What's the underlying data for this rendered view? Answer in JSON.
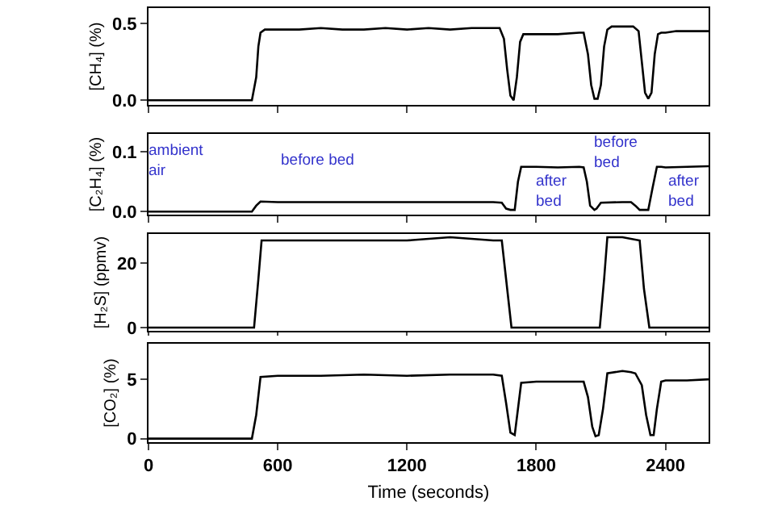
{
  "chart_data": [
    {
      "type": "line",
      "color": "#000000",
      "ylabel": "[CH₄] (%)",
      "xlim": [
        0,
        2600
      ],
      "xticks": [
        0,
        600,
        1200,
        1800,
        2400
      ],
      "ylim": [
        -0.03,
        0.6
      ],
      "yticks": [
        {
          "value": 0,
          "label": "0.0"
        },
        {
          "value": 0.5,
          "label": "0.5"
        }
      ],
      "tick_labels": "y",
      "x": [
        0,
        100,
        200,
        300,
        400,
        480,
        500,
        510,
        520,
        540,
        600,
        700,
        800,
        900,
        1000,
        1100,
        1200,
        1300,
        1400,
        1500,
        1600,
        1630,
        1650,
        1665,
        1680,
        1695,
        1710,
        1725,
        1740,
        1800,
        1900,
        2000,
        2020,
        2040,
        2055,
        2070,
        2085,
        2100,
        2115,
        2130,
        2150,
        2200,
        2250,
        2275,
        2290,
        2305,
        2320,
        2335,
        2350,
        2365,
        2380,
        2400,
        2450,
        2500,
        2550,
        2600
      ],
      "values": [
        0,
        0,
        0,
        0,
        0,
        0,
        0.15,
        0.35,
        0.44,
        0.46,
        0.46,
        0.46,
        0.47,
        0.46,
        0.46,
        0.47,
        0.46,
        0.47,
        0.46,
        0.47,
        0.47,
        0.47,
        0.4,
        0.2,
        0.03,
        0.0,
        0.15,
        0.38,
        0.43,
        0.43,
        0.43,
        0.44,
        0.44,
        0.3,
        0.1,
        0.01,
        0.01,
        0.1,
        0.35,
        0.46,
        0.48,
        0.48,
        0.48,
        0.45,
        0.25,
        0.05,
        0.01,
        0.05,
        0.3,
        0.43,
        0.44,
        0.44,
        0.45,
        0.45,
        0.45,
        0.45
      ]
    },
    {
      "type": "line",
      "color": "#000000",
      "ylabel": "[C₂H₄] (%)",
      "xlim": [
        0,
        2600
      ],
      "xticks": [
        0,
        600,
        1200,
        1800,
        2400
      ],
      "ylim": [
        -0.005,
        0.13
      ],
      "yticks": [
        {
          "value": 0,
          "label": "0.0"
        },
        {
          "value": 0.1,
          "label": "0.1"
        }
      ],
      "tick_labels": "y",
      "annotations": [
        "ambient\nair",
        "before bed",
        "after\nbed",
        "before\nbed",
        "after\nbed"
      ],
      "x": [
        0,
        480,
        500,
        520,
        600,
        800,
        1000,
        1200,
        1400,
        1600,
        1640,
        1660,
        1680,
        1700,
        1715,
        1730,
        1800,
        1900,
        2000,
        2020,
        2035,
        2050,
        2070,
        2080,
        2100,
        2200,
        2240,
        2260,
        2280,
        2300,
        2320,
        2340,
        2360,
        2380,
        2400,
        2500,
        2600
      ],
      "values": [
        0,
        0,
        0.01,
        0.017,
        0.016,
        0.016,
        0.016,
        0.016,
        0.016,
        0.016,
        0.015,
        0.005,
        0.003,
        0.003,
        0.05,
        0.075,
        0.075,
        0.074,
        0.075,
        0.074,
        0.05,
        0.01,
        0.003,
        0.005,
        0.015,
        0.016,
        0.016,
        0.01,
        0.003,
        0.003,
        0.003,
        0.04,
        0.075,
        0.075,
        0.074,
        0.075,
        0.076
      ]
    },
    {
      "type": "line",
      "color": "#000000",
      "ylabel": "[H₂S] (ppmv)",
      "xlim": [
        0,
        2600
      ],
      "xticks": [
        0,
        600,
        1200,
        1800,
        2400
      ],
      "ylim": [
        -1,
        29
      ],
      "yticks": [
        0,
        20
      ],
      "tick_labels": "y",
      "x": [
        0,
        480,
        490,
        510,
        525,
        600,
        800,
        1000,
        1200,
        1400,
        1600,
        1640,
        1660,
        1685,
        1800,
        2000,
        2095,
        2115,
        2130,
        2200,
        2280,
        2300,
        2325,
        2400,
        2600
      ],
      "values": [
        0,
        0,
        0,
        15,
        27,
        27,
        27,
        27,
        27,
        28,
        27,
        27,
        15,
        0,
        0,
        0,
        0,
        15,
        28,
        28,
        27,
        12,
        0,
        0,
        0
      ]
    },
    {
      "type": "line",
      "color": "#000000",
      "ylabel": "[CO₂] (%)",
      "xlabel": "Time (seconds)",
      "xlim": [
        0,
        2600
      ],
      "xticks": [
        0,
        600,
        1200,
        1800,
        2400
      ],
      "ylim": [
        -0.3,
        8
      ],
      "yticks": [
        0,
        5
      ],
      "x": [
        0,
        480,
        500,
        520,
        600,
        800,
        1000,
        1200,
        1400,
        1600,
        1640,
        1660,
        1680,
        1700,
        1715,
        1730,
        1800,
        1900,
        2000,
        2020,
        2040,
        2060,
        2075,
        2090,
        2110,
        2130,
        2200,
        2240,
        2260,
        2290,
        2310,
        2330,
        2345,
        2360,
        2380,
        2400,
        2500,
        2600
      ],
      "values": [
        0,
        0,
        2,
        5.2,
        5.3,
        5.3,
        5.4,
        5.3,
        5.4,
        5.4,
        5.3,
        3,
        0.5,
        0.3,
        2.5,
        4.7,
        4.8,
        4.8,
        4.8,
        4.8,
        3.5,
        1,
        0.2,
        0.3,
        2.5,
        5.5,
        5.7,
        5.6,
        5.5,
        4.5,
        2,
        0.3,
        0.3,
        2.5,
        4.8,
        4.9,
        4.9,
        5
      ]
    }
  ]
}
